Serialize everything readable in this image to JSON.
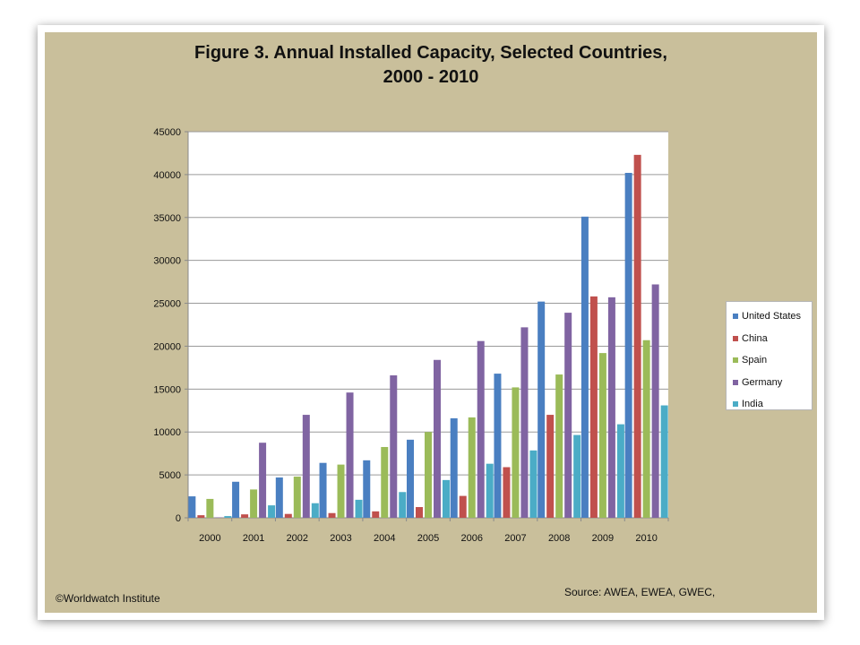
{
  "chart_data": {
    "type": "bar",
    "title": "Figure 3. Annual Installed Capacity, Selected Countries,\n2000 - 2010",
    "categories": [
      "2000",
      "2001",
      "2002",
      "2003",
      "2004",
      "2005",
      "2006",
      "2007",
      "2008",
      "2009",
      "2010"
    ],
    "series": [
      {
        "name": "United States",
        "color": "#4a7fc1",
        "values": [
          2500,
          4200,
          4700,
          6400,
          6700,
          9100,
          11600,
          16800,
          25200,
          35100,
          40200
        ]
      },
      {
        "name": "China",
        "color": "#c0504d",
        "values": [
          300,
          400,
          450,
          550,
          750,
          1250,
          2550,
          5900,
          12000,
          25800,
          42300
        ]
      },
      {
        "name": "Spain",
        "color": "#9bbb59",
        "values": [
          2200,
          3300,
          4800,
          6200,
          8250,
          10000,
          11700,
          15200,
          16700,
          19200,
          20700
        ]
      },
      {
        "name": "Germany",
        "color": "#8064a2",
        "values": [
          50,
          8750,
          12000,
          14600,
          16600,
          18400,
          20600,
          22200,
          23900,
          25700,
          27200
        ]
      },
      {
        "name": "India",
        "color": "#4bacc6",
        "values": [
          200,
          1450,
          1700,
          2100,
          3000,
          4400,
          6300,
          7850,
          9650,
          10900,
          13100
        ]
      }
    ],
    "ylim": [
      0,
      45000
    ],
    "yticks": [
      0,
      5000,
      10000,
      15000,
      20000,
      25000,
      30000,
      35000,
      40000,
      45000
    ],
    "grid": true,
    "legend": "right"
  },
  "footer": {
    "copyright": "©Worldwatch Institute",
    "source": "Source: AWEA, EWEA, GWEC,"
  }
}
